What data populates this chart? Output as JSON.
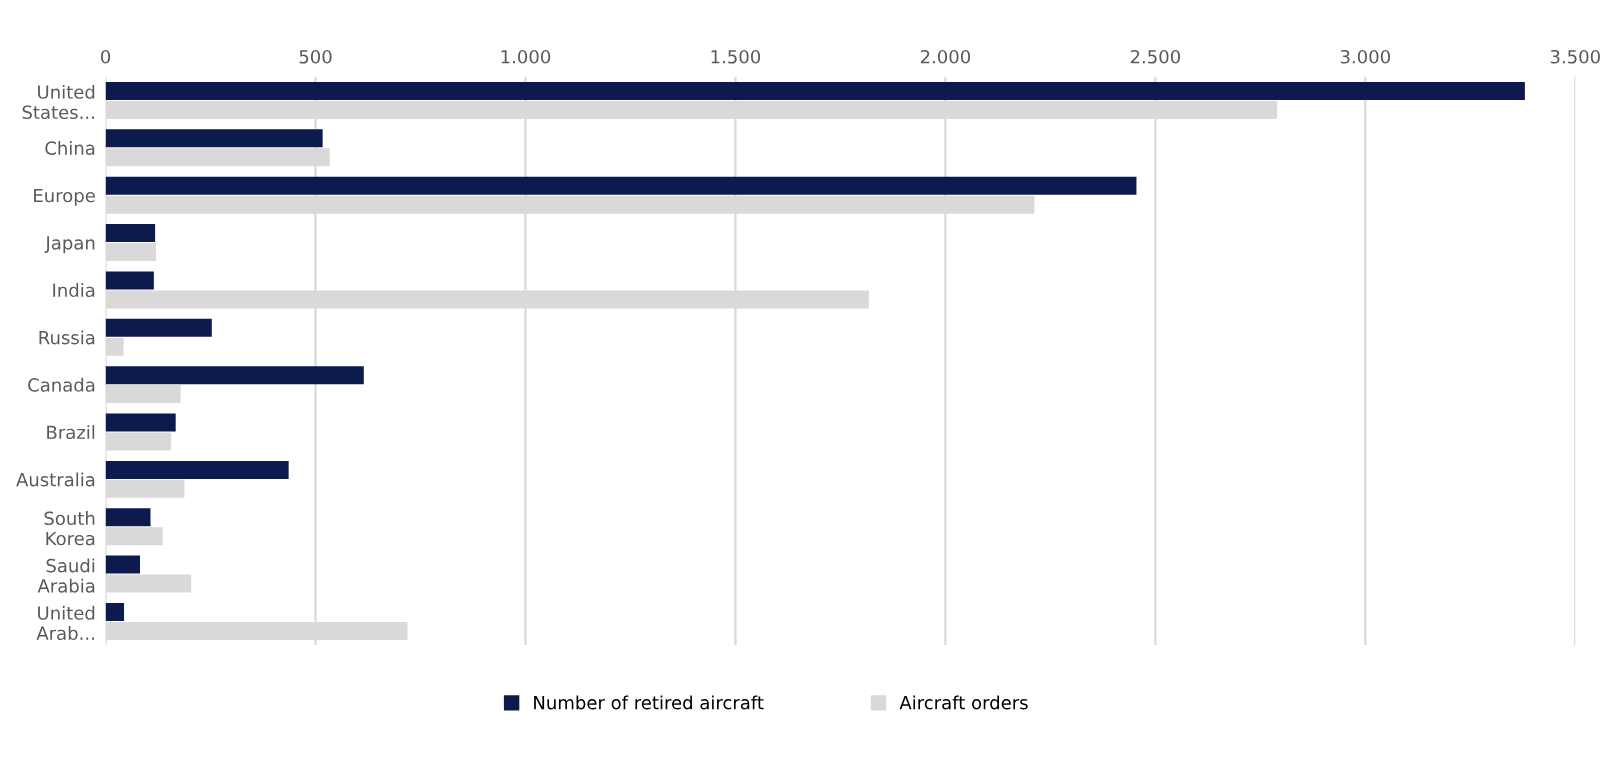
{
  "chart_data": {
    "type": "bar",
    "orientation": "horizontal",
    "categories": [
      "United States...",
      "China",
      "Europe",
      "Japan",
      "India",
      "Russia",
      "Canada",
      "Brazil",
      "Australia",
      "South Korea",
      "Saudi Arabia",
      "United Arab..."
    ],
    "series": [
      {
        "name": "Number of retired aircraft",
        "color": "#0c1a4d",
        "values": [
          3380,
          517,
          2455,
          118,
          115,
          253,
          615,
          167,
          436,
          107,
          82,
          44
        ]
      },
      {
        "name": "Aircraft orders",
        "color": "#d9d9d9",
        "values": [
          2790,
          534,
          2212,
          120,
          1818,
          43,
          179,
          156,
          188,
          136,
          204,
          719
        ]
      }
    ],
    "xlim": [
      0,
      3500
    ],
    "xticks": [
      0,
      {
        "value": 500,
        "label": "500"
      },
      {
        "value": 1000,
        "label": "1.000"
      },
      {
        "value": 1500,
        "label": "1.500"
      },
      {
        "value": 2000,
        "label": "2.000"
      },
      {
        "value": 2500,
        "label": "2.500"
      },
      {
        "value": 3000,
        "label": "3.000"
      },
      {
        "value": 3500,
        "label": "3.500"
      }
    ],
    "grid": "x",
    "legend": "bottom"
  }
}
